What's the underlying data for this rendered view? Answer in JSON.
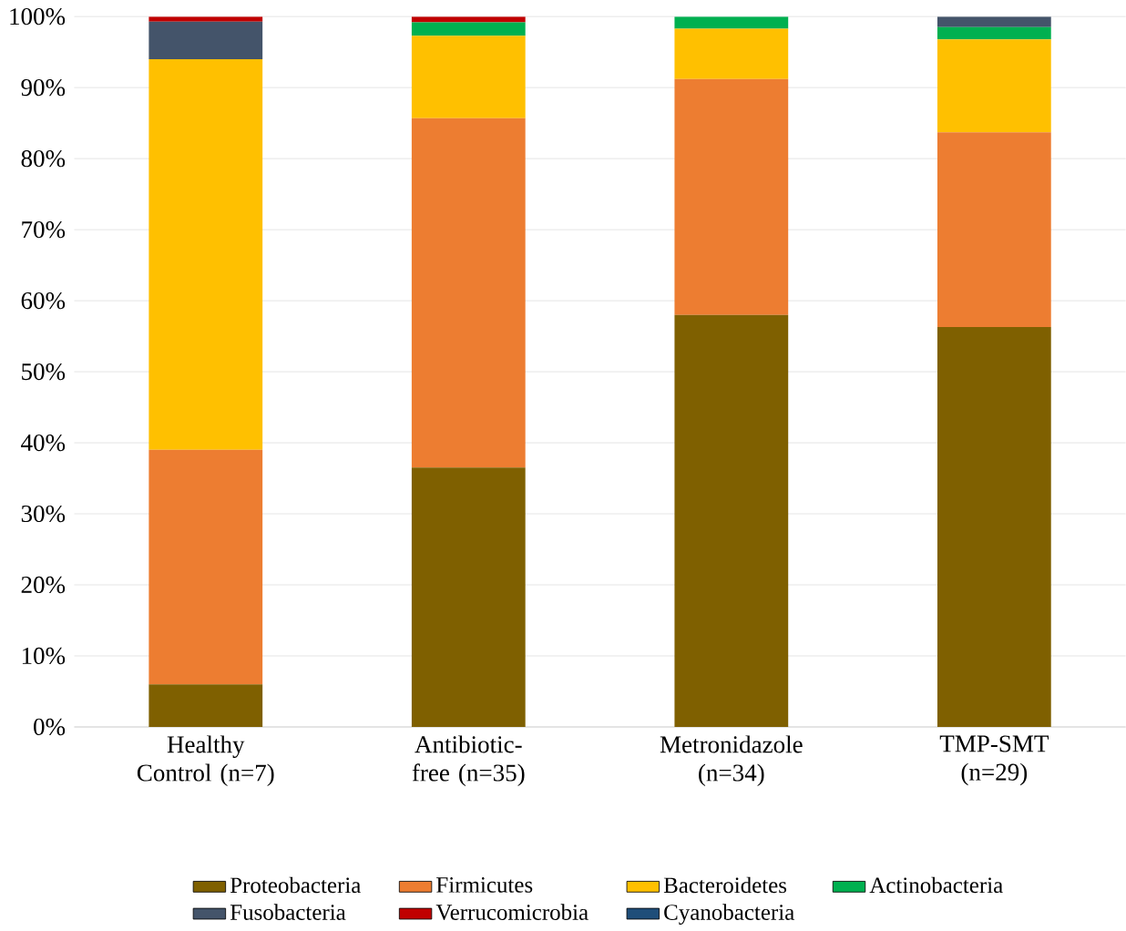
{
  "chart_data": {
    "type": "bar",
    "stacked": true,
    "categories": [
      "Healthy Control (n=7)",
      "Antibiotic-free (n=35)",
      "Metronidazole (n=34)",
      "TMP-SMT (n=29)"
    ],
    "series": [
      {
        "name": "Proteobacteria",
        "color": "#7f6000",
        "values": [
          6,
          36.5,
          58,
          56.3
        ]
      },
      {
        "name": "Firmicutes",
        "color": "#ed7d31",
        "values": [
          33,
          49.2,
          33.2,
          27.4
        ]
      },
      {
        "name": "Bacteroidetes",
        "color": "#ffc000",
        "values": [
          55,
          11.6,
          7.1,
          13.1
        ]
      },
      {
        "name": "Actinobacteria",
        "color": "#00b050",
        "values": [
          0,
          1.9,
          1.7,
          1.7
        ]
      },
      {
        "name": "Fusobacteria",
        "color": "#44546a",
        "values": [
          5.3,
          0,
          0,
          1.5
        ]
      },
      {
        "name": "Verrucomicrobia",
        "color": "#c00000",
        "values": [
          0.7,
          0.8,
          0,
          0
        ]
      },
      {
        "name": "Cyanobacteria",
        "color": "#1f4e79",
        "values": [
          0,
          0,
          0,
          0
        ]
      }
    ],
    "ylim": [
      0,
      100
    ],
    "yticks": [
      {
        "value": 0,
        "label": "0%"
      },
      {
        "value": 10,
        "label": "10%"
      },
      {
        "value": 20,
        "label": "20%"
      },
      {
        "value": 30,
        "label": "30%"
      },
      {
        "value": 40,
        "label": "40%"
      },
      {
        "value": 50,
        "label": "50%"
      },
      {
        "value": 60,
        "label": "60%"
      },
      {
        "value": 70,
        "label": "70%"
      },
      {
        "value": 80,
        "label": "80%"
      },
      {
        "value": 90,
        "label": "90%"
      },
      {
        "value": 100,
        "label": "100%"
      }
    ],
    "grid": "y",
    "legend": "bottom"
  }
}
